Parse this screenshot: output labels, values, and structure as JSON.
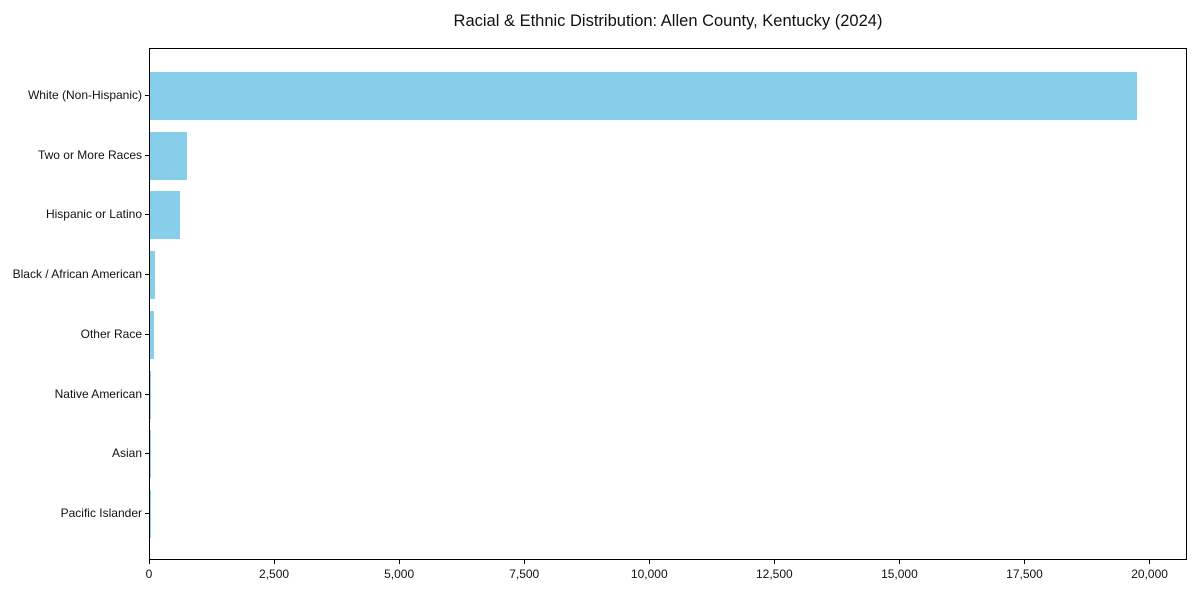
{
  "chart_data": {
    "type": "bar",
    "orientation": "horizontal",
    "title": "Racial & Ethnic Distribution: Allen County, Kentucky (2024)",
    "categories": [
      "White (Non-Hispanic)",
      "Two or More Races",
      "Hispanic or Latino",
      "Black / African American",
      "Other Race",
      "Native American",
      "Asian",
      "Pacific Islander"
    ],
    "values": [
      19760,
      740,
      600,
      100,
      80,
      30,
      12,
      5
    ],
    "xlabel": "",
    "ylabel": "",
    "xlim": [
      0,
      20748
    ],
    "x_ticks": [
      0,
      2500,
      5000,
      7500,
      10000,
      12500,
      15000,
      17500,
      20000
    ],
    "x_tick_labels": [
      "0",
      "2,500",
      "5,000",
      "7,500",
      "10,000",
      "12,500",
      "15,000",
      "17,500",
      "20,000"
    ],
    "bar_color": "#87CEEB",
    "frame_color": "#000000",
    "text_color": "#111111",
    "grid": false,
    "legend_position": "none"
  }
}
